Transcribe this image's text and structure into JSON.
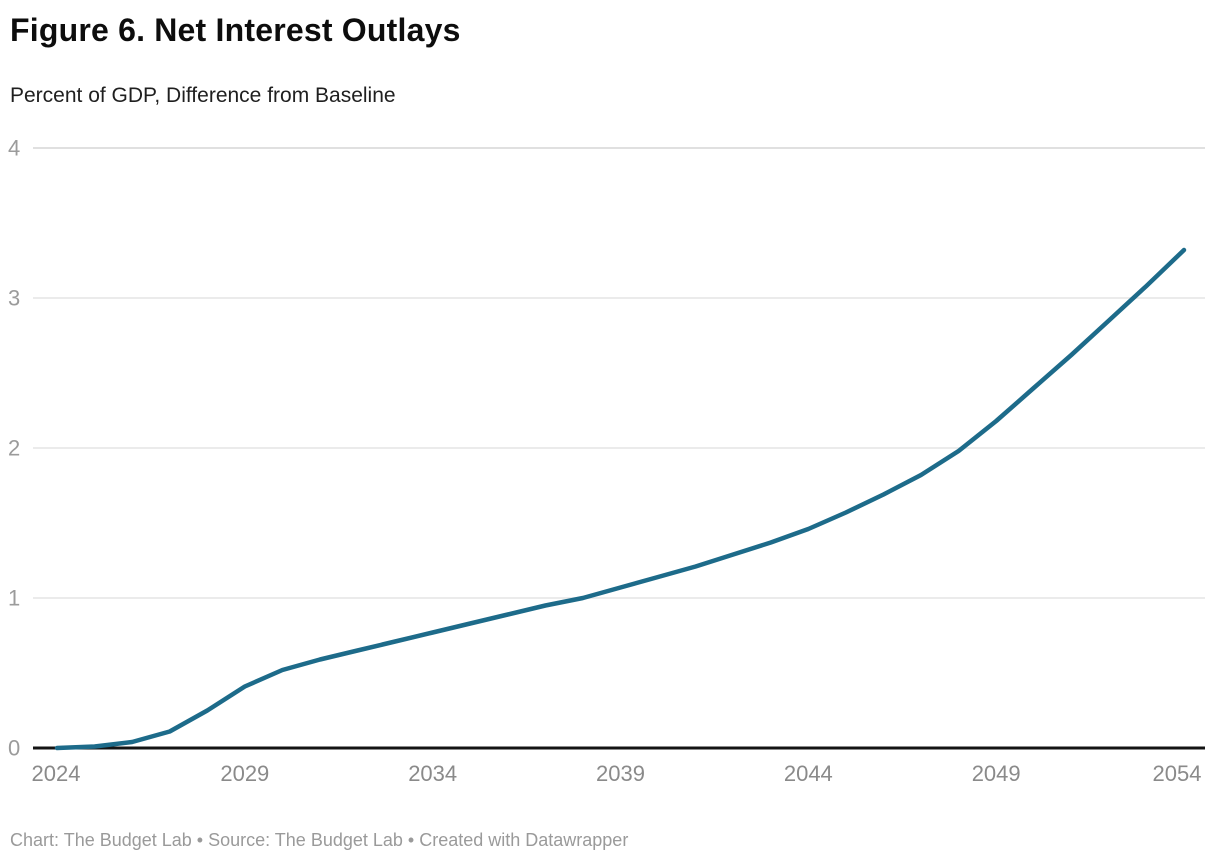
{
  "header": {
    "title": "Figure 6. Net Interest Outlays",
    "subtitle": "Percent of GDP, Difference from Baseline"
  },
  "chart_data": {
    "type": "line",
    "title": "Figure 6. Net Interest Outlays",
    "subtitle": "Percent of GDP, Difference from Baseline",
    "x": [
      2024,
      2025,
      2026,
      2027,
      2028,
      2029,
      2030,
      2031,
      2032,
      2033,
      2034,
      2035,
      2036,
      2037,
      2038,
      2039,
      2040,
      2041,
      2042,
      2043,
      2044,
      2045,
      2046,
      2047,
      2048,
      2049,
      2050,
      2051,
      2052,
      2053,
      2054
    ],
    "series": [
      {
        "name": "Net interest outlays, difference from baseline",
        "values": [
          0.0,
          0.01,
          0.04,
          0.11,
          0.25,
          0.41,
          0.52,
          0.59,
          0.65,
          0.71,
          0.77,
          0.83,
          0.89,
          0.95,
          1.0,
          1.07,
          1.14,
          1.21,
          1.29,
          1.37,
          1.46,
          1.57,
          1.69,
          1.82,
          1.98,
          2.18,
          2.4,
          2.62,
          2.85,
          3.08,
          3.32
        ]
      }
    ],
    "x_ticks": [
      2024,
      2029,
      2034,
      2039,
      2044,
      2049,
      2054
    ],
    "y_ticks": [
      0,
      1,
      2,
      3,
      4
    ],
    "xlim": [
      2024,
      2054
    ],
    "ylim": [
      0,
      4
    ],
    "grid": "horizontal",
    "legend": "none",
    "colors": {
      "line": "#1d6b8a",
      "gridline": "#ebebeb",
      "gridline_top": "#e0e0e0",
      "axis": "#141414",
      "y_tick_label": "#9b9b9b",
      "x_tick_label": "#8a8a8a"
    }
  },
  "footer": {
    "credit": "Chart: The Budget Lab • Source: The Budget Lab • Created with Datawrapper"
  }
}
